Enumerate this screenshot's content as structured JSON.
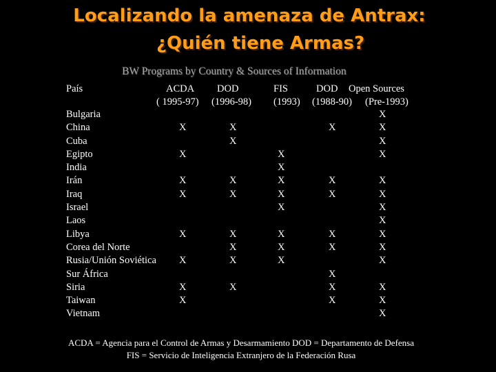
{
  "title": {
    "line1": "Localizando la amenaza de Antrax:",
    "line2": "¿Quién tiene Armas?"
  },
  "subtitle": "BW Programs by Country & Sources of Information",
  "table": {
    "country_header": "País",
    "columns": [
      {
        "key": "acda",
        "name": "ACDA",
        "period": "( 1995-97)"
      },
      {
        "key": "dod1",
        "name": "DOD",
        "period": "(1996-98)"
      },
      {
        "key": "fis",
        "name": "FIS",
        "period": "(1993)"
      },
      {
        "key": "dod2",
        "name": "DOD",
        "period": "(1988-90)"
      },
      {
        "key": "open",
        "name": "Open Sources",
        "period": "(Pre-1993)"
      }
    ],
    "rows": [
      {
        "country": "Bulgaria",
        "acda": "",
        "dod1": "",
        "fis": "",
        "dod2": "",
        "open": "X"
      },
      {
        "country": "China",
        "acda": "X",
        "dod1": "X",
        "fis": "",
        "dod2": "X",
        "open": "X"
      },
      {
        "country": "Cuba",
        "acda": "",
        "dod1": "X",
        "fis": "",
        "dod2": "",
        "open": "X"
      },
      {
        "country": "Egipto",
        "acda": "X",
        "dod1": "",
        "fis": "X",
        "dod2": "",
        "open": "X"
      },
      {
        "country": "India",
        "acda": "",
        "dod1": "",
        "fis": "X",
        "dod2": "",
        "open": ""
      },
      {
        "country": "Irán",
        "acda": "X",
        "dod1": "X",
        "fis": "X",
        "dod2": "X",
        "open": "X"
      },
      {
        "country": "Iraq",
        "acda": "X",
        "dod1": "X",
        "fis": "X",
        "dod2": "X",
        "open": "X"
      },
      {
        "country": "Israel",
        "acda": "",
        "dod1": "",
        "fis": "X",
        "dod2": "",
        "open": "X"
      },
      {
        "country": "Laos",
        "acda": "",
        "dod1": "",
        "fis": "",
        "dod2": "",
        "open": "X"
      },
      {
        "country": "Libya",
        "acda": "X",
        "dod1": "X",
        "fis": "X",
        "dod2": "X",
        "open": "X"
      },
      {
        "country": "Corea del Norte",
        "acda": "",
        "dod1": "X",
        "fis": "X",
        "dod2": "X",
        "open": "X"
      },
      {
        "country": "Rusia/Unión Soviética",
        "acda": "X",
        "dod1": "X",
        "fis": "X",
        "dod2": "",
        "open": "X"
      },
      {
        "country": "Sur África",
        "acda": "",
        "dod1": "",
        "fis": "",
        "dod2": "X",
        "open": ""
      },
      {
        "country": "Siria",
        "acda": "X",
        "dod1": "X",
        "fis": "",
        "dod2": "X",
        "open": "X"
      },
      {
        "country": "Taiwan",
        "acda": "X",
        "dod1": "",
        "fis": "",
        "dod2": "X",
        "open": "X"
      },
      {
        "country": "Vietnam",
        "acda": "",
        "dod1": "",
        "fis": "",
        "dod2": "",
        "open": "X"
      }
    ]
  },
  "footnotes": {
    "line1": "ACDA = Agencia para el Control de Armas y Desarmamiento DOD = Departamento de Defensa",
    "line2": "FIS = Servicio de Inteligencia Extranjero de la Federación Rusa"
  },
  "colors": {
    "background": "#000000",
    "title": "#ff9d1a",
    "subtitle": "#a9a9a9",
    "text": "#ffffff"
  }
}
